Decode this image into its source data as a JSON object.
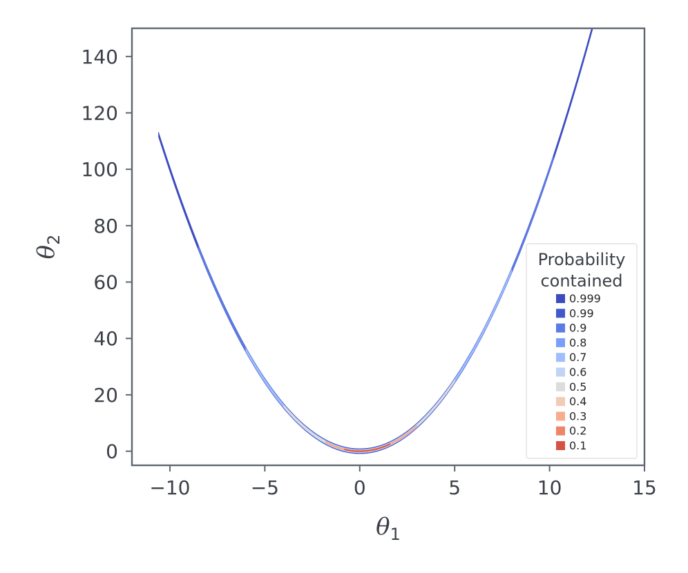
{
  "chart_data": {
    "type": "contour",
    "xlabel": "θ",
    "xlabel_sub": "1",
    "ylabel": "θ",
    "ylabel_sub": "2",
    "xlim": [
      -12,
      15
    ],
    "ylim": [
      -5,
      150
    ],
    "xticks": [
      -10,
      -5,
      0,
      5,
      10,
      15
    ],
    "xtick_labels": [
      "−10",
      "−5",
      "0",
      "5",
      "10",
      "15"
    ],
    "yticks": [
      0,
      20,
      40,
      60,
      80,
      100,
      120,
      140
    ],
    "ytick_labels": [
      "0",
      "20",
      "40",
      "60",
      "80",
      "100",
      "120",
      "140"
    ],
    "curve": {
      "form": "theta2 = theta1^2",
      "x_range": [
        -10.6,
        12.3
      ]
    },
    "legend": {
      "title_lines": [
        "Probability",
        "contained"
      ],
      "placement": "lower-right",
      "entries": [
        {
          "label": "0.999",
          "color": "#3b4cc0"
        },
        {
          "label": "0.99",
          "color": "#4358cb"
        },
        {
          "label": "0.9",
          "color": "#5b7ae5"
        },
        {
          "label": "0.8",
          "color": "#7b9ff9"
        },
        {
          "label": "0.7",
          "color": "#9ebeff"
        },
        {
          "label": "0.6",
          "color": "#c0d4f5"
        },
        {
          "label": "0.5",
          "color": "#dddcdc"
        },
        {
          "label": "0.4",
          "color": "#f2cbb7"
        },
        {
          "label": "0.3",
          "color": "#f7ac8e"
        },
        {
          "label": "0.2",
          "color": "#ee8468"
        },
        {
          "label": "0.1",
          "color": "#d65244"
        }
      ]
    },
    "bands": [
      {
        "p": "0.999",
        "color": "#3b4cc0",
        "half_width": 0.9,
        "x_range": [
          -10.6,
          12.3
        ]
      },
      {
        "p": "0.9",
        "color": "#5b7ae5",
        "half_width": 0.7,
        "x_range": [
          -8.5,
          10.2
        ]
      },
      {
        "p": "0.7",
        "color": "#9ebeff",
        "half_width": 0.55,
        "x_range": [
          -6.0,
          8.0
        ]
      },
      {
        "p": "0.5",
        "color": "#dddcdc",
        "half_width": 0.42,
        "x_range": [
          -4.0,
          5.0
        ]
      },
      {
        "p": "0.3",
        "color": "#f7ac8e",
        "half_width": 0.3,
        "x_range": [
          -1.8,
          3.0
        ]
      },
      {
        "p": "0.1",
        "color": "#d65244",
        "half_width": 0.16,
        "x_range": [
          -0.8,
          1.6
        ]
      }
    ]
  }
}
